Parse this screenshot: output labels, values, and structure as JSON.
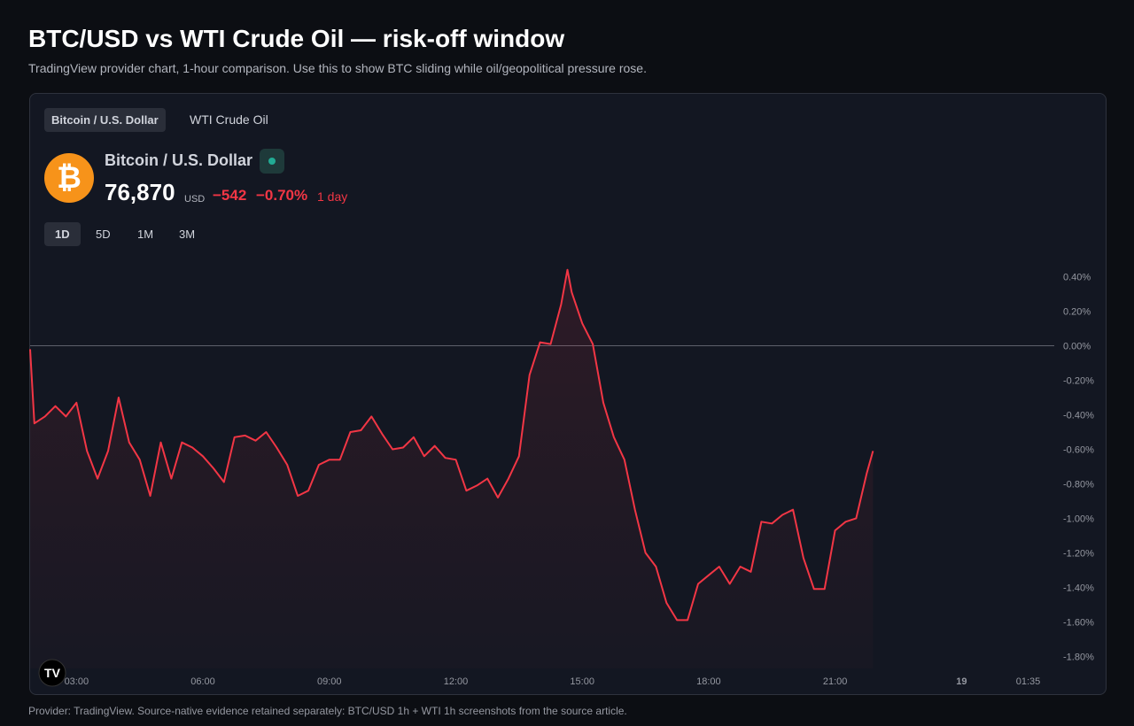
{
  "header": {
    "title": "BTC/USD vs WTI Crude Oil — risk-off window",
    "subtitle": "TradingView provider chart, 1-hour comparison. Use this to show BTC sliding while oil/geopolitical pressure rose."
  },
  "widget": {
    "tabs": [
      "Bitcoin / U.S. Dollar",
      "WTI Crude Oil"
    ],
    "price": "76,870",
    "currency": "USD",
    "change": "−542",
    "change_pct": "−0.70%",
    "period": "1 day",
    "ranges": [
      "1D",
      "5D",
      "1M",
      "3M"
    ]
  },
  "footer": "Provider: TradingView. Source-native evidence retained separately: BTC/USD 1h + WTI 1h screenshots from the source article.",
  "chart_data": {
    "type": "line",
    "x": [
      1.9,
      2,
      2.25,
      2.5,
      2.75,
      3,
      3.25,
      3.5,
      3.75,
      4,
      4.25,
      4.5,
      4.75,
      5,
      5.25,
      5.5,
      5.75,
      6,
      6.25,
      6.5,
      6.75,
      7,
      7.25,
      7.5,
      7.75,
      8,
      8.25,
      8.5,
      8.75,
      9,
      9.25,
      9.5,
      9.75,
      10,
      10.25,
      10.5,
      10.75,
      11,
      11.25,
      11.5,
      11.75,
      12,
      12.25,
      12.5,
      12.75,
      13,
      13.25,
      13.5,
      13.75,
      14,
      14.25,
      14.5,
      14.65,
      14.75,
      15,
      15.25,
      15.5,
      15.75,
      16,
      16.25,
      16.5,
      16.75,
      17,
      17.25,
      17.5,
      17.75,
      18,
      18.25,
      18.5,
      18.75,
      19,
      19.25,
      19.5,
      19.75,
      20,
      20.25,
      20.5,
      20.75,
      21,
      21.25,
      21.5,
      21.75,
      21.9
    ],
    "series": [
      {
        "name": "Bitcoin / U.S. Dollar",
        "color": "#f23645",
        "values": [
          -0.02,
          -0.45,
          -0.41,
          -0.35,
          -0.41,
          -0.33,
          -0.61,
          -0.77,
          -0.61,
          -0.3,
          -0.56,
          -0.66,
          -0.87,
          -0.56,
          -0.77,
          -0.56,
          -0.59,
          -0.64,
          -0.71,
          -0.79,
          -0.53,
          -0.52,
          -0.55,
          -0.5,
          -0.59,
          -0.69,
          -0.87,
          -0.84,
          -0.69,
          -0.66,
          -0.66,
          -0.5,
          -0.49,
          -0.41,
          -0.51,
          -0.6,
          -0.59,
          -0.53,
          -0.64,
          -0.58,
          -0.65,
          -0.66,
          -0.84,
          -0.81,
          -0.77,
          -0.88,
          -0.77,
          -0.64,
          -0.17,
          0.02,
          0.01,
          0.24,
          0.44,
          0.31,
          0.13,
          0.01,
          -0.33,
          -0.53,
          -0.66,
          -0.95,
          -1.2,
          -1.28,
          -1.49,
          -1.59,
          -1.59,
          -1.38,
          -1.33,
          -1.28,
          -1.38,
          -1.28,
          -1.31,
          -1.02,
          -1.03,
          -0.98,
          -0.95,
          -1.23,
          -1.41,
          -1.41,
          -1.07,
          -1.02,
          -1,
          -0.74,
          -0.61
        ]
      }
    ],
    "xlim": [
      1.9,
      26.2
    ],
    "xticks": [
      {
        "value": 3,
        "label": "03:00"
      },
      {
        "value": 6,
        "label": "06:00"
      },
      {
        "value": 9,
        "label": "09:00"
      },
      {
        "value": 12,
        "label": "12:00"
      },
      {
        "value": 15,
        "label": "15:00"
      },
      {
        "value": 18,
        "label": "18:00"
      },
      {
        "value": 21,
        "label": "21:00"
      },
      {
        "value": 24,
        "label": "19"
      },
      {
        "value": 25.58,
        "label": "01:35"
      }
    ],
    "ylim": [
      -1.87,
      0.49
    ],
    "yticks": [
      {
        "value": 0.4,
        "label": "0.40%"
      },
      {
        "value": 0.2,
        "label": "0.20%"
      },
      {
        "value": 0,
        "label": "0.00%"
      },
      {
        "value": -0.2,
        "label": "-0.20%"
      },
      {
        "value": -0.4,
        "label": "-0.40%"
      },
      {
        "value": -0.6,
        "label": "-0.60%"
      },
      {
        "value": -0.8,
        "label": "-0.80%"
      },
      {
        "value": -1,
        "label": "-1.00%"
      },
      {
        "value": -1.2,
        "label": "-1.20%"
      },
      {
        "value": -1.4,
        "label": "-1.40%"
      },
      {
        "value": -1.6,
        "label": "-1.60%"
      },
      {
        "value": -1.8,
        "label": "-1.80%"
      }
    ],
    "zero_line": true,
    "grid": false
  }
}
